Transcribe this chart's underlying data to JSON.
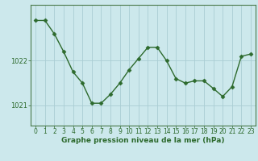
{
  "x": [
    0,
    1,
    2,
    3,
    4,
    5,
    6,
    7,
    8,
    9,
    10,
    11,
    12,
    13,
    14,
    15,
    16,
    17,
    18,
    19,
    20,
    21,
    22,
    23
  ],
  "y": [
    1022.9,
    1022.9,
    1022.6,
    1022.2,
    1021.75,
    1021.5,
    1021.05,
    1021.05,
    1021.25,
    1021.5,
    1021.8,
    1022.05,
    1022.3,
    1022.3,
    1022.0,
    1021.6,
    1021.5,
    1021.55,
    1021.55,
    1021.38,
    1021.2,
    1021.42,
    1022.1,
    1022.15
  ],
  "line_color": "#2d6a2d",
  "marker": "D",
  "markersize": 2.5,
  "linewidth": 1.0,
  "bg_color": "#cce8ec",
  "plot_bg_color": "#cce8ec",
  "grid_color": "#aacdd4",
  "axis_color": "#4a7a4a",
  "tick_color": "#2d6a2d",
  "label_color": "#2d6a2d",
  "xlabel": "Graphe pression niveau de la mer (hPa)",
  "xlabel_fontsize": 6.5,
  "xlabel_bold": true,
  "ytick_labels": [
    "1021",
    "1022"
  ],
  "ytick_values": [
    1021.0,
    1022.0
  ],
  "ylim": [
    1020.55,
    1023.25
  ],
  "xlim": [
    -0.5,
    23.5
  ],
  "xtick_labels": [
    "0",
    "1",
    "2",
    "3",
    "4",
    "5",
    "6",
    "7",
    "8",
    "9",
    "10",
    "11",
    "12",
    "13",
    "14",
    "15",
    "16",
    "17",
    "18",
    "19",
    "20",
    "21",
    "22",
    "23"
  ],
  "tick_fontsize": 5.5
}
